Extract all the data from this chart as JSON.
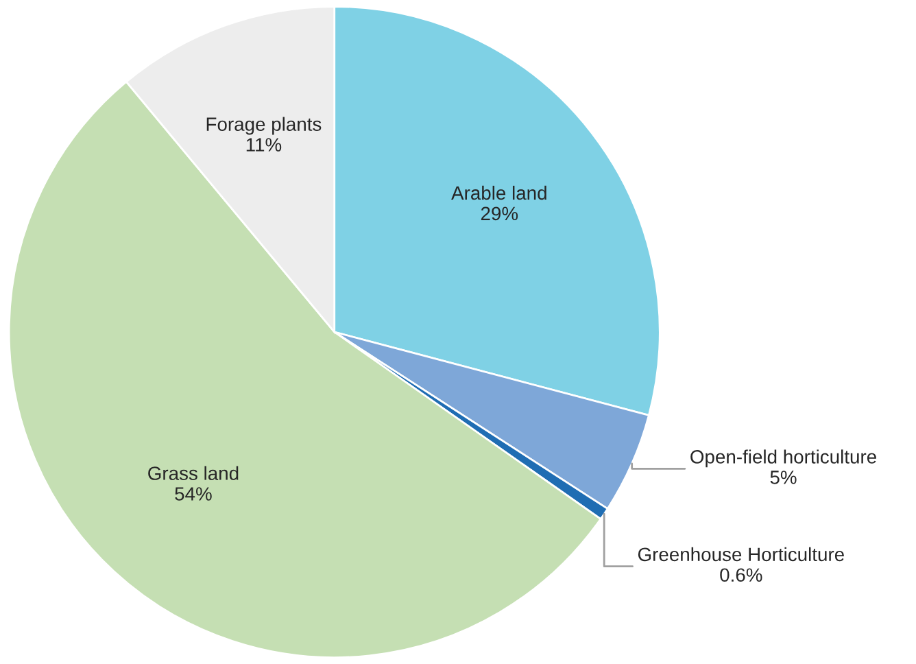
{
  "chart_data": {
    "type": "pie",
    "categories": [
      "Arable land",
      "Open-field horticulture",
      "Greenhouse Horticulture",
      "Grass land",
      "Forage plants"
    ],
    "values": [
      29,
      5,
      0.6,
      54,
      11
    ],
    "colors": [
      "#7fd1e5",
      "#7ea7d8",
      "#1f6db3",
      "#c5dfb3",
      "#ededed"
    ],
    "value_labels": [
      "29%",
      "5%",
      "0.6%",
      "54%",
      "11%"
    ]
  }
}
